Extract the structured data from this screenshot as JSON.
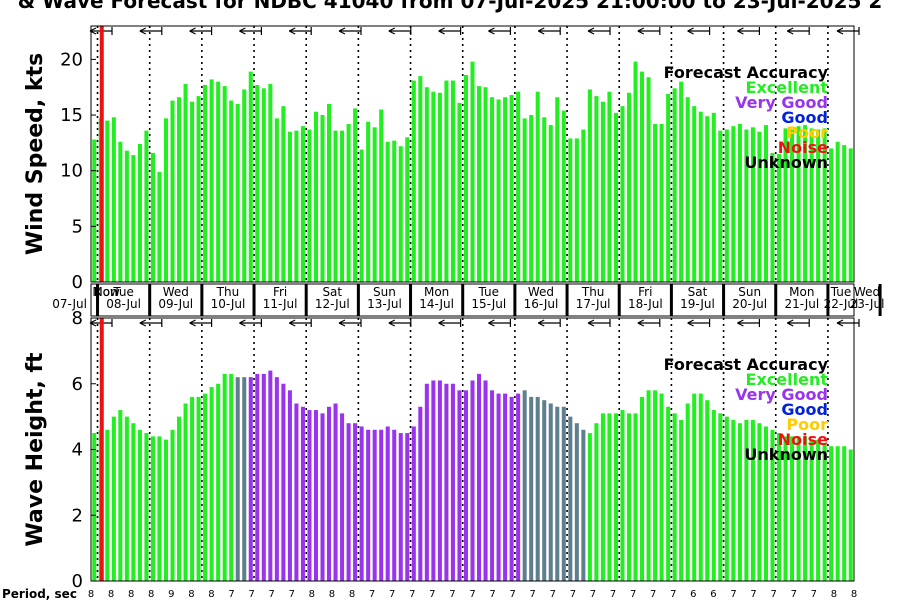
{
  "title": "& Wave Forecast for NDBC 41040 from 07-Jul-2025 21:00:00 to 23-Jul-2025 2",
  "now_marker_label": "Now",
  "period_label": "Period, sec",
  "days": [
    {
      "dow": "Mon",
      "date": "07-Jul"
    },
    {
      "dow": "Tue",
      "date": "08-Jul"
    },
    {
      "dow": "Wed",
      "date": "09-Jul"
    },
    {
      "dow": "Thu",
      "date": "10-Jul"
    },
    {
      "dow": "Fri",
      "date": "11-Jul"
    },
    {
      "dow": "Sat",
      "date": "12-Jul"
    },
    {
      "dow": "Sun",
      "date": "13-Jul"
    },
    {
      "dow": "Mon",
      "date": "14-Jul"
    },
    {
      "dow": "Tue",
      "date": "15-Jul"
    },
    {
      "dow": "Wed",
      "date": "16-Jul"
    },
    {
      "dow": "Thu",
      "date": "17-Jul"
    },
    {
      "dow": "Fri",
      "date": "18-Jul"
    },
    {
      "dow": "Sat",
      "date": "19-Jul"
    },
    {
      "dow": "Sun",
      "date": "20-Jul"
    },
    {
      "dow": "Mon",
      "date": "21-Jul"
    },
    {
      "dow": "Tue",
      "date": "22-Jul"
    },
    {
      "dow": "Wed",
      "date": "23-Jul"
    }
  ],
  "legend": {
    "title": "Forecast Accuracy",
    "items": [
      {
        "label": "Excellent",
        "color": "#22ee22"
      },
      {
        "label": "Very Good",
        "color": "#9933ee"
      },
      {
        "label": "Good",
        "color": "#0022dd"
      },
      {
        "label": "Poor",
        "color": "#ffcc00"
      },
      {
        "label": "Noise",
        "color": "#ee1111"
      },
      {
        "label": "Unknown",
        "color": "#000000"
      }
    ]
  },
  "colors": {
    "excellent": "#22ee22",
    "very_good": "#9933ee",
    "transition": "#5f7f8f",
    "now_line": "#ee1111"
  },
  "periods": [
    8,
    8,
    8,
    8,
    9,
    8,
    8,
    7,
    7,
    7,
    7,
    8,
    8,
    8,
    7,
    7,
    7,
    7,
    7,
    7,
    7,
    7,
    7,
    7,
    7,
    7,
    7,
    7,
    7,
    7,
    6,
    6,
    7,
    7,
    7,
    7,
    7,
    8,
    8
  ],
  "chart_data": [
    {
      "type": "bar",
      "ylabel": "Wind Speed, kts",
      "ylim": [
        0,
        23
      ],
      "yticks": [
        0,
        5,
        10,
        15,
        20
      ],
      "x_start": "07-Jul-2025 21:00",
      "x_step_hours": 3,
      "grid": "dotted vertical lines at day boundaries",
      "values": [
        12.8,
        14.7,
        14.5,
        14.8,
        12.6,
        11.8,
        11.4,
        12.4,
        13.6,
        11.6,
        9.9,
        14.7,
        16.3,
        16.6,
        17.8,
        16.2,
        16.7,
        17.7,
        18.2,
        18.0,
        17.6,
        16.3,
        16.0,
        17.3,
        18.9,
        17.7,
        17.4,
        17.8,
        14.7,
        15.8,
        13.5,
        13.6,
        14.0,
        13.7,
        15.3,
        15.0,
        16.0,
        13.6,
        13.6,
        14.2,
        15.6,
        11.9,
        14.4,
        13.9,
        15.5,
        12.6,
        12.7,
        12.2,
        13.0,
        18.1,
        18.5,
        17.5,
        17.1,
        17.0,
        18.1,
        18.1,
        16.1,
        18.6,
        19.8,
        17.6,
        17.5,
        16.6,
        16.4,
        16.6,
        16.8,
        17.1,
        14.7,
        15.0,
        17.1,
        14.8,
        14.1,
        16.6,
        15.4,
        12.9,
        12.9,
        13.7,
        17.3,
        16.7,
        16.2,
        17.1,
        15.2,
        15.8,
        17.0,
        19.8,
        18.9,
        18.4,
        14.2,
        14.2,
        16.9,
        17.4,
        18.0,
        16.6,
        15.8,
        15.3,
        14.9,
        15.2,
        13.6,
        13.7,
        14.0,
        14.2,
        13.7,
        13.9,
        13.5,
        14.1,
        11.6,
        11.5,
        13.8,
        13.7,
        14.0,
        14.1,
        13.8,
        13.7,
        13.8,
        12.0,
        12.6,
        12.3,
        12.0
      ],
      "accuracy": "excellent"
    },
    {
      "type": "bar",
      "ylabel": "Wave Height, ft",
      "ylim": [
        0,
        8
      ],
      "yticks": [
        0,
        2,
        4,
        6,
        8
      ],
      "x_start": "07-Jul-2025 21:00",
      "x_step_hours": 3,
      "grid": "dotted vertical lines at day boundaries",
      "values": [
        4.5,
        4.6,
        4.6,
        5.0,
        5.2,
        5.0,
        4.8,
        4.6,
        4.5,
        4.4,
        4.4,
        4.3,
        4.6,
        5.0,
        5.4,
        5.6,
        5.6,
        5.7,
        5.9,
        6.0,
        6.3,
        6.3,
        6.2,
        6.2,
        6.2,
        6.3,
        6.3,
        6.4,
        6.2,
        6.0,
        5.8,
        5.4,
        5.3,
        5.2,
        5.2,
        5.1,
        5.3,
        5.4,
        5.1,
        4.8,
        4.8,
        4.7,
        4.6,
        4.6,
        4.6,
        4.7,
        4.6,
        4.5,
        4.5,
        4.7,
        5.3,
        6.0,
        6.1,
        6.1,
        6.0,
        6.0,
        5.8,
        5.8,
        6.1,
        6.3,
        6.1,
        5.8,
        5.7,
        5.7,
        5.6,
        5.7,
        5.8,
        5.6,
        5.6,
        5.5,
        5.4,
        5.3,
        5.3,
        5.0,
        4.8,
        4.6,
        4.5,
        4.8,
        5.1,
        5.1,
        5.1,
        5.2,
        5.1,
        5.1,
        5.6,
        5.8,
        5.8,
        5.7,
        5.3,
        5.1,
        4.9,
        5.4,
        5.7,
        5.7,
        5.5,
        5.2,
        5.1,
        5.0,
        4.9,
        4.8,
        4.9,
        4.9,
        4.8,
        4.7,
        4.6,
        4.5,
        4.4,
        4.4,
        4.4,
        4.4,
        4.3,
        4.3,
        4.2,
        4.1,
        4.1,
        4.1,
        4.0
      ],
      "accuracy_ranges": [
        {
          "from": 0,
          "to": 22,
          "accuracy": "excellent"
        },
        {
          "from": 22,
          "to": 24,
          "accuracy": "transition"
        },
        {
          "from": 24,
          "to": 66,
          "accuracy": "very_good"
        },
        {
          "from": 66,
          "to": 76,
          "accuracy": "transition"
        },
        {
          "from": 76,
          "to": 117,
          "accuracy": "excellent"
        }
      ]
    }
  ]
}
